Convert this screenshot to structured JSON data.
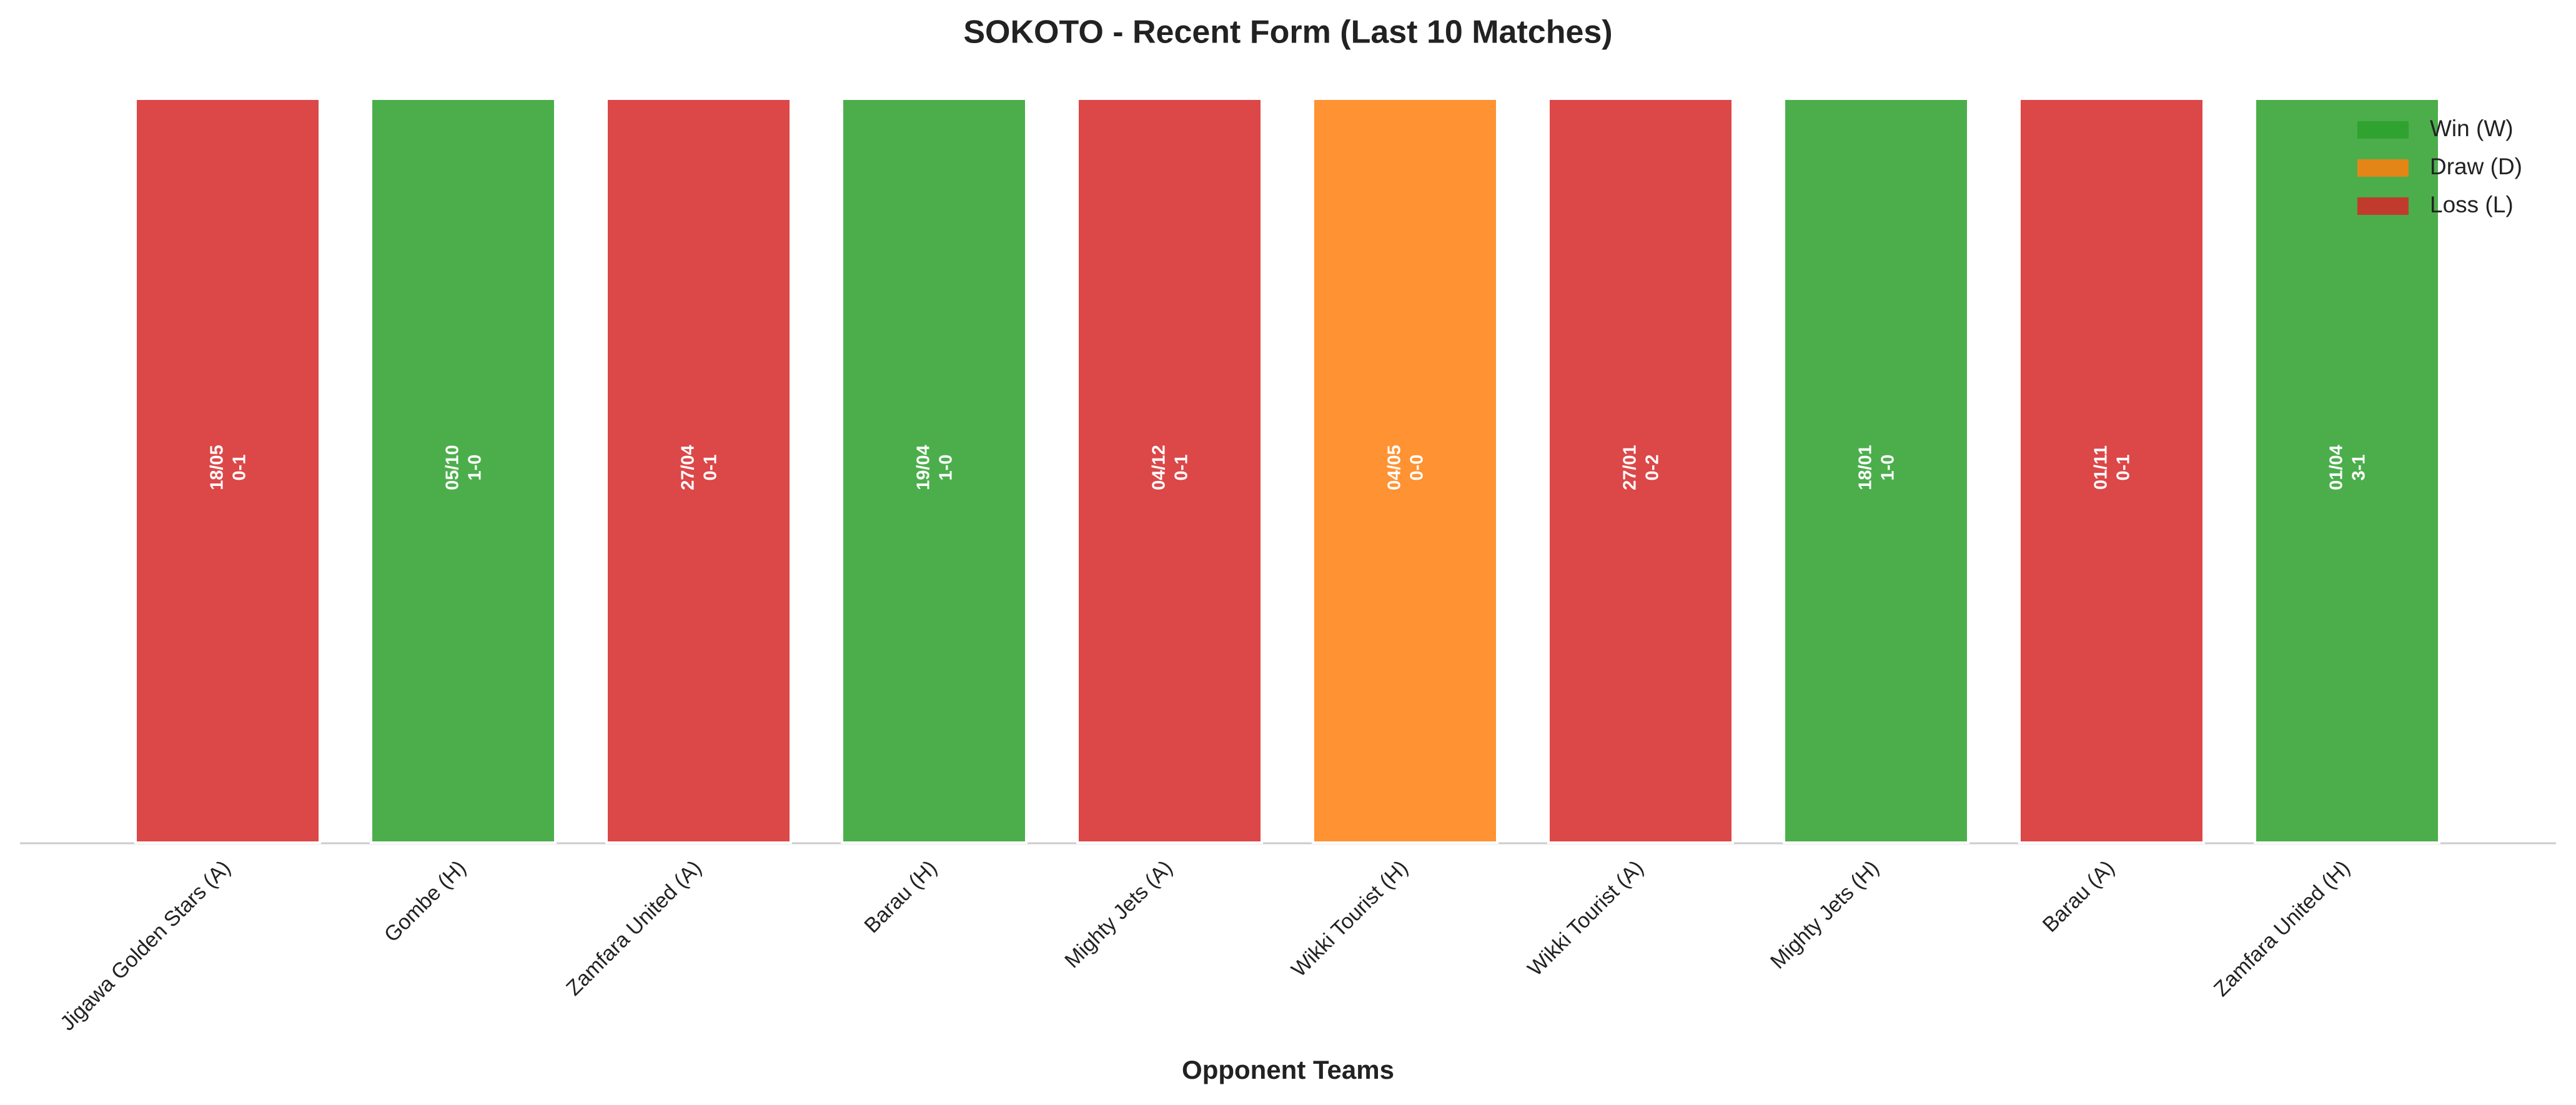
{
  "chart_data": {
    "type": "bar",
    "title": "SOKOTO - Recent Form (Last 10 Matches)",
    "x_label": "Opponent Teams",
    "categories": [
      "Jigawa Golden Stars (A)",
      "Gombe (H)",
      "Zamfara United (A)",
      "Barau (H)",
      "Mighty Jets (A)",
      "Wikki Tourist (H)",
      "Wikki Tourist (A)",
      "Mighty Jets (H)",
      "Barau (A)",
      "Zamfara United (H)"
    ],
    "values": [
      1,
      1,
      1,
      1,
      1,
      1,
      1,
      1,
      1,
      1
    ],
    "dates": [
      "18/05",
      "05/10",
      "27/04",
      "19/04",
      "04/12",
      "04/05",
      "27/01",
      "18/01",
      "01/11",
      "01/04"
    ],
    "scores": [
      "0-1",
      "1-0",
      "0-1",
      "1-0",
      "0-1",
      "0-0",
      "0-2",
      "1-0",
      "0-1",
      "3-1"
    ],
    "colors": [
      "#d62728",
      "#2ca02c",
      "#d62728",
      "#2ca02c",
      "#d62728",
      "#ff7f0e",
      "#d62728",
      "#2ca02c",
      "#d62728",
      "#2ca02c"
    ],
    "ylim": [
      0,
      1
    ],
    "legend_position": "upper right",
    "legend": [
      {
        "name": "Win (W)",
        "color": "#2ca02c"
      },
      {
        "name": "Draw (D)",
        "color": "#ff7f0e"
      },
      {
        "name": "Loss (L)",
        "color": "#d62728"
      }
    ]
  }
}
